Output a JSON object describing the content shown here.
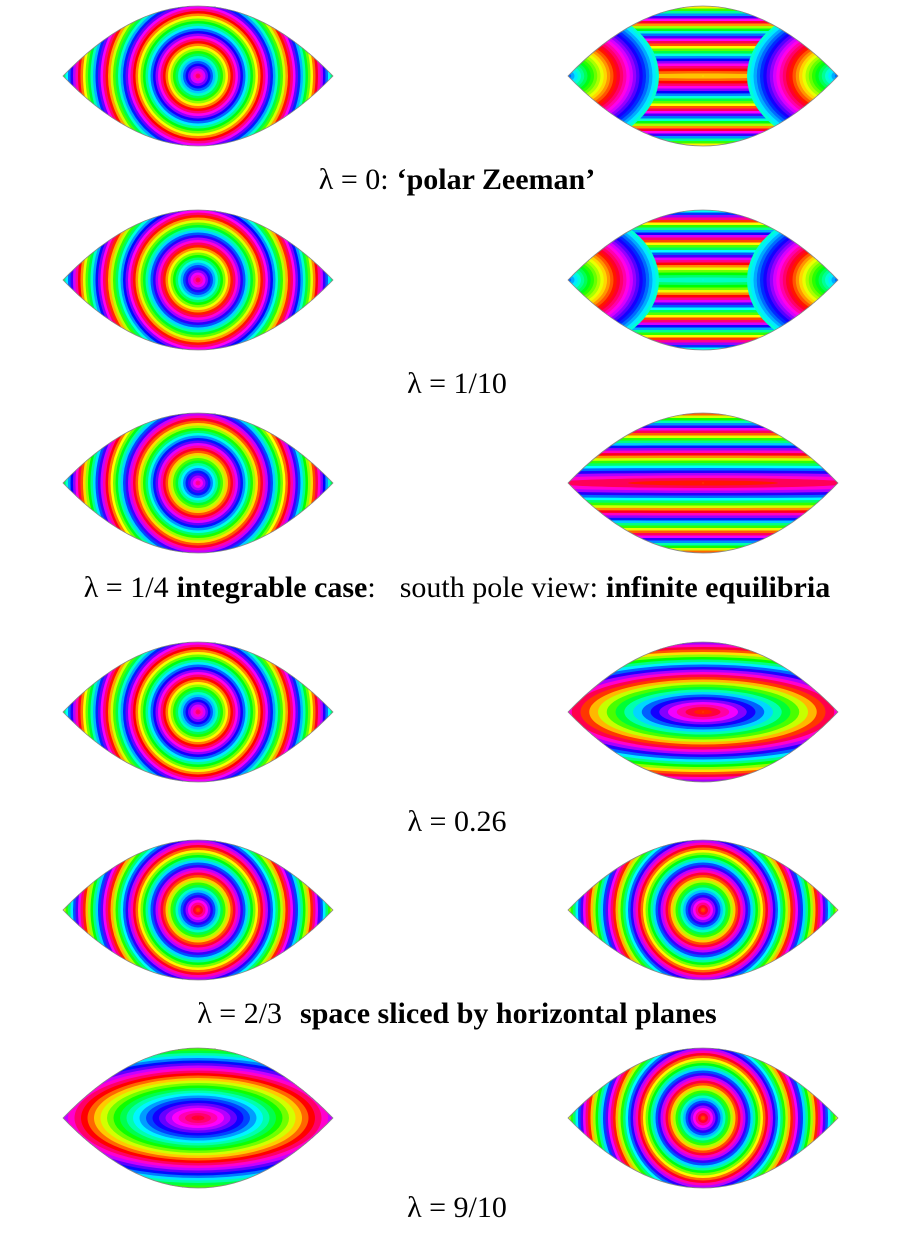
{
  "captions": [
    [
      "λ = 0:",
      "‘polar Zeeman’"
    ],
    [
      "λ = 1/10"
    ],
    [
      "λ = 1/4",
      "integrable case",
      ":",
      "south pole view:",
      "infinite equilibria"
    ],
    [
      "λ = 0.26"
    ],
    [
      "λ = 2/3",
      "space sliced by horizontal planes"
    ],
    [
      "λ = 9/10"
    ]
  ]
}
